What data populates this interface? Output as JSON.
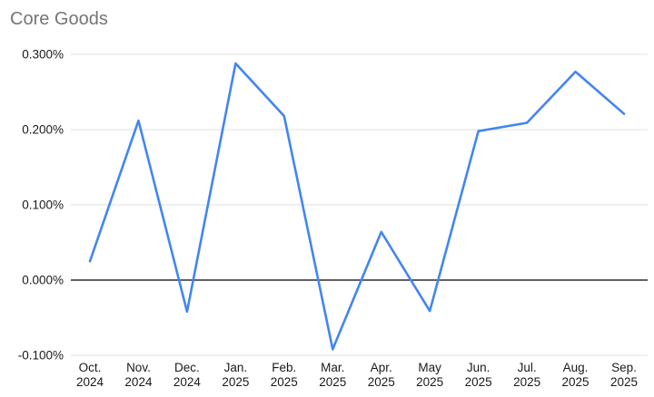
{
  "title": "Core Goods",
  "colors": {
    "line": "#4285f4",
    "title_text": "#757575",
    "grid": "#e0e0e0",
    "zero_line": "#000000",
    "axis_text": "#1a1a1a",
    "background": "#ffffff"
  },
  "chart_data": {
    "type": "line",
    "title": "Core Goods",
    "categories": [
      "Oct. 2024",
      "Nov. 2024",
      "Dec. 2024",
      "Jan. 2025",
      "Feb. 2025",
      "Mar. 2025",
      "Apr. 2025",
      "May 2025",
      "Jun. 2025",
      "Jul. 2025",
      "Aug. 2025",
      "Sep. 2025"
    ],
    "values": [
      0.025,
      0.212,
      -0.042,
      0.288,
      0.218,
      -0.092,
      0.064,
      -0.041,
      0.198,
      0.209,
      0.277,
      0.221
    ],
    "unit": "%",
    "xlabel": "",
    "ylabel": "",
    "ylim": [
      -0.1,
      0.3
    ],
    "yticks": [
      0.3,
      0.2,
      0.1,
      0.0,
      -0.1
    ],
    "ytick_labels": [
      "0.300%",
      "0.200%",
      "0.100%",
      "0.000%",
      "-0.100%"
    ],
    "grid": true,
    "legend_position": "none"
  }
}
